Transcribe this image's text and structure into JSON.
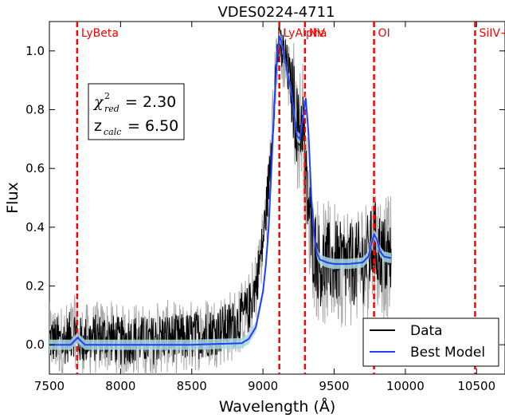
{
  "chart_data": {
    "type": "line",
    "title": "VDES0224-4711",
    "xlabel": "Wavelength  (Å)",
    "ylabel": "Flux",
    "xlim": [
      7500,
      10700
    ],
    "ylim": [
      -0.1,
      1.1
    ],
    "x_ticks": [
      7500,
      8000,
      8500,
      9000,
      9500,
      10000,
      10500
    ],
    "y_ticks": [
      0.0,
      0.2,
      0.4,
      0.6,
      0.8,
      1.0
    ],
    "x_tick_labels": [
      "7500",
      "8000",
      "8500",
      "9000",
      "9500",
      "10000",
      "10500"
    ],
    "y_tick_labels": [
      "0.0",
      "0.2",
      "0.4",
      "0.6",
      "0.8",
      "1.0"
    ],
    "grid": false,
    "legend": {
      "position": "bottom-right",
      "entries": [
        {
          "label": "Data",
          "color": "#000000"
        },
        {
          "label": "Best Model",
          "color": "#1f3fff"
        }
      ]
    },
    "annotation": {
      "chi_symbol": "χ",
      "chi_sup": "2",
      "chi_sub": "red",
      "chi_value": "= 2.30",
      "z_symbol": "z",
      "z_sub": "calc",
      "z_value": "= 6.50"
    },
    "emission_lines": [
      {
        "label": "LyBeta",
        "x": 7695
      },
      {
        "label": "LyAlpha",
        "x": 9115
      },
      {
        "label": "NV",
        "x": 9295
      },
      {
        "label": "OI",
        "x": 9780
      },
      {
        "label": "SiIV+OIV",
        "x": 10490
      }
    ],
    "line_color": "#ff0000",
    "series": [
      {
        "name": "Data",
        "color": "#000000",
        "x": [
          7500,
          7600,
          7690,
          7700,
          7800,
          7900,
          8000,
          8100,
          8200,
          8300,
          8400,
          8500,
          8600,
          8700,
          8800,
          8900,
          8950,
          9000,
          9050,
          9080,
          9100,
          9115,
          9150,
          9200,
          9250,
          9280,
          9300,
          9350,
          9400,
          9500,
          9600,
          9700,
          9750,
          9780,
          9800,
          9850,
          9900
        ],
        "values": [
          0.02,
          0.01,
          0.05,
          0.01,
          0.02,
          0.03,
          0.01,
          0.02,
          0.01,
          0.03,
          0.02,
          0.03,
          0.04,
          0.05,
          0.07,
          0.12,
          0.2,
          0.35,
          0.6,
          0.85,
          1.0,
          1.02,
          0.98,
          0.88,
          0.72,
          0.78,
          0.55,
          0.35,
          0.27,
          0.28,
          0.27,
          0.28,
          0.31,
          0.36,
          0.33,
          0.3,
          0.29
        ],
        "noise_amplitude": 0.12
      },
      {
        "name": "Best Model",
        "color": "#1f3fff",
        "x": [
          7500,
          7650,
          7690,
          7700,
          7710,
          7750,
          8000,
          8500,
          8850,
          8900,
          8950,
          9000,
          9020,
          9040,
          9060,
          9080,
          9100,
          9115,
          9130,
          9150,
          9170,
          9200,
          9220,
          9240,
          9260,
          9280,
          9300,
          9320,
          9340,
          9360,
          9380,
          9400,
          9450,
          9500,
          9600,
          9700,
          9740,
          9760,
          9780,
          9800,
          9820,
          9850,
          9900
        ],
        "values": [
          0.0,
          0.0,
          0.02,
          0.025,
          0.018,
          0.0,
          0.0,
          0.0,
          0.005,
          0.02,
          0.06,
          0.18,
          0.27,
          0.4,
          0.6,
          0.82,
          0.99,
          1.05,
          1.03,
          0.98,
          0.93,
          0.86,
          0.78,
          0.71,
          0.7,
          0.77,
          0.84,
          0.72,
          0.5,
          0.37,
          0.31,
          0.29,
          0.28,
          0.275,
          0.275,
          0.28,
          0.3,
          0.34,
          0.375,
          0.36,
          0.32,
          0.3,
          0.295
        ]
      }
    ],
    "model_band": {
      "name": "",
      "color": "#a8d8e0",
      "width": 0.035
    }
  }
}
